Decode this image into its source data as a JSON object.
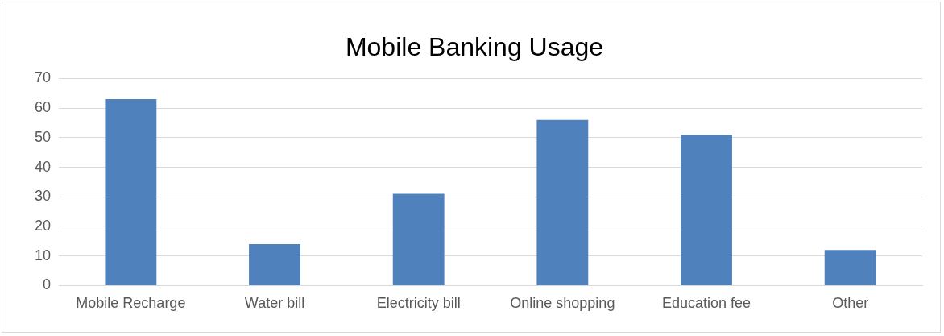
{
  "chart_data": {
    "type": "bar",
    "title": "Mobile Banking Usage",
    "categories": [
      "Mobile Recharge",
      "Water bill",
      "Electricity bill",
      "Online shopping",
      "Education fee",
      "Other"
    ],
    "values": [
      63,
      14,
      31,
      56,
      51,
      12
    ],
    "color": "#4f81bd",
    "ylim": [
      0,
      70
    ],
    "yticks": [
      0,
      10,
      20,
      30,
      40,
      50,
      60,
      70
    ],
    "grid": "y",
    "legend": false
  }
}
